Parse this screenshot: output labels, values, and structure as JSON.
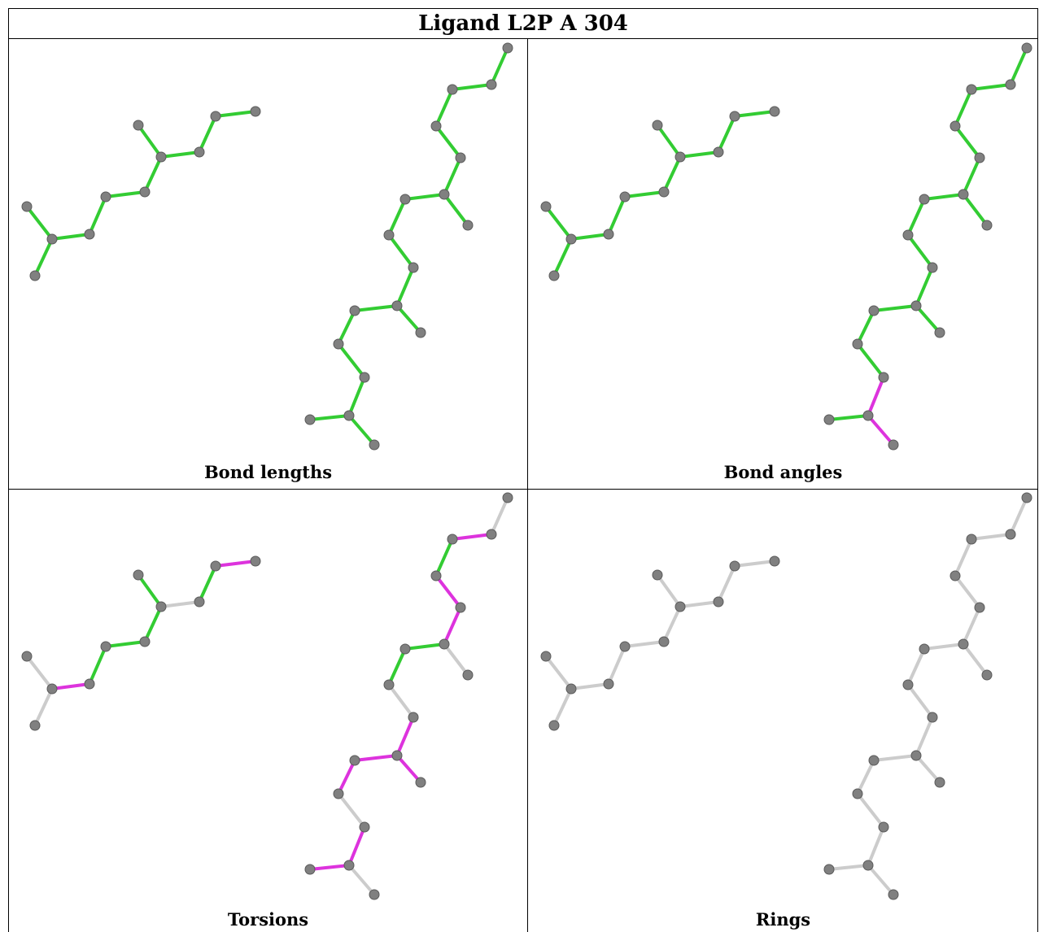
{
  "title": "Ligand L2P A 304",
  "colors": {
    "ok": "#33cc33",
    "outlier": "#dd33dd",
    "none": "#cccccc",
    "atom": "#808080"
  },
  "panels": [
    {
      "caption": "Bond lengths",
      "bond_colors": [
        "ok",
        "ok",
        "ok",
        "ok",
        "ok",
        "ok",
        "ok",
        "ok",
        "ok",
        "ok",
        "ok",
        "ok",
        "ok",
        "ok",
        "ok",
        "ok",
        "ok",
        "ok",
        "ok",
        "ok",
        "ok",
        "ok",
        "ok",
        "ok",
        "ok",
        "ok",
        "ok",
        "ok",
        "ok",
        "ok",
        "ok",
        "ok",
        "ok",
        "ok",
        "ok",
        "ok",
        "ok",
        "ok"
      ]
    },
    {
      "caption": "Bond angles",
      "bond_colors": [
        "ok",
        "ok",
        "ok",
        "ok",
        "ok",
        "ok",
        "ok",
        "ok",
        "ok",
        "ok",
        "ok",
        "ok",
        "ok",
        "ok",
        "ok",
        "ok",
        "ok",
        "ok",
        "ok",
        "ok",
        "ok",
        "ok",
        "ok",
        "ok",
        "outlier",
        "outlier",
        "ok",
        "ok",
        "ok",
        "ok",
        "ok",
        "ok",
        "ok",
        "ok",
        "ok",
        "ok",
        "ok",
        "ok"
      ]
    },
    {
      "caption": "Torsions",
      "bond_colors": [
        "none",
        "none",
        "outlier",
        "ok",
        "ok",
        "ok",
        "ok",
        "none",
        "ok",
        "outlier",
        "none",
        "outlier",
        "ok",
        "outlier",
        "outlier",
        "ok",
        "none",
        "ok",
        "none",
        "outlier",
        "outlier",
        "outlier",
        "outlier",
        "none",
        "outlier",
        "none",
        "outlier",
        "outlier",
        "ok",
        "outlier",
        "outlier",
        "none"
      ]
    },
    {
      "caption": "Rings",
      "bond_colors": []
    }
  ]
}
